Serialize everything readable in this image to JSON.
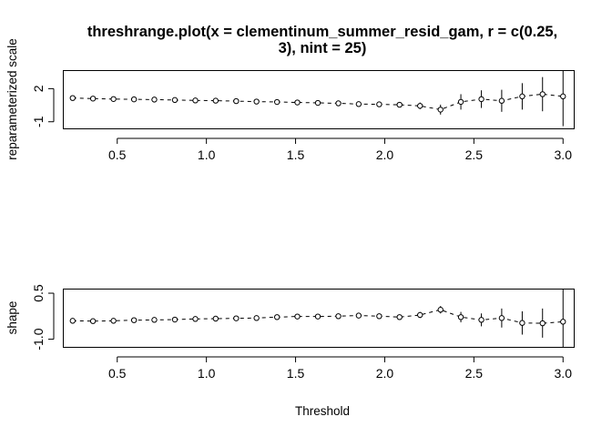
{
  "title_lines": [
    "threshrange.plot(x = clementinum_summer_resid_gam, r = c(0.25,",
    "3), nint = 25)"
  ],
  "chart_data": [
    {
      "type": "scatter",
      "panel": "top",
      "ylabel": "reparameterized scale",
      "xlabel": "",
      "xlim": [
        0.2,
        3.06
      ],
      "ylim": [
        -1.6,
        3.6
      ],
      "xticks": [
        0.5,
        1.0,
        1.5,
        2.0,
        2.5,
        3.0
      ],
      "xtick_labels": [
        "0.5",
        "1.0",
        "1.5",
        "2.0",
        "2.5",
        "3.0"
      ],
      "yticks": [
        -1,
        2
      ],
      "ytick_labels": [
        "-1",
        "2"
      ],
      "grid": false,
      "x": [
        0.25,
        0.364,
        0.479,
        0.594,
        0.708,
        0.823,
        0.938,
        1.052,
        1.167,
        1.281,
        1.396,
        1.51,
        1.625,
        1.74,
        1.854,
        1.969,
        2.083,
        2.198,
        2.313,
        2.427,
        2.542,
        2.656,
        2.771,
        2.885,
        3.0
      ],
      "estimate": [
        1.15,
        1.1,
        1.06,
        1.03,
        1.01,
        0.97,
        0.93,
        0.91,
        0.87,
        0.83,
        0.79,
        0.75,
        0.71,
        0.67,
        0.6,
        0.58,
        0.54,
        0.44,
        0.1,
        0.8,
        1.05,
        0.9,
        1.3,
        1.5,
        1.3
      ],
      "lower": [
        1.0,
        0.95,
        0.92,
        0.89,
        0.86,
        0.82,
        0.78,
        0.75,
        0.71,
        0.66,
        0.62,
        0.57,
        0.52,
        0.47,
        0.39,
        0.35,
        0.3,
        0.14,
        -0.35,
        0.1,
        0.25,
        -0.1,
        0.1,
        -0.05,
        -1.4
      ],
      "upper": [
        1.3,
        1.25,
        1.2,
        1.17,
        1.16,
        1.12,
        1.08,
        1.07,
        1.03,
        1.0,
        0.96,
        0.93,
        0.9,
        0.87,
        0.81,
        0.81,
        0.78,
        0.74,
        0.55,
        1.5,
        1.85,
        1.9,
        2.5,
        3.05,
        4.0
      ]
    },
    {
      "type": "scatter",
      "panel": "bottom",
      "ylabel": "shape",
      "xlabel": "Threshold",
      "xlim": [
        0.2,
        3.06
      ],
      "ylim": [
        -1.25,
        0.62
      ],
      "xticks": [
        0.5,
        1.0,
        1.5,
        2.0,
        2.5,
        3.0
      ],
      "xtick_labels": [
        "0.5",
        "1.0",
        "1.5",
        "2.0",
        "2.5",
        "3.0"
      ],
      "yticks": [
        -1.0,
        0.5
      ],
      "ytick_labels": [
        "-1.0",
        "0.5"
      ],
      "grid": false,
      "x": [
        0.25,
        0.364,
        0.479,
        0.594,
        0.708,
        0.823,
        0.938,
        1.052,
        1.167,
        1.281,
        1.396,
        1.51,
        1.625,
        1.74,
        1.854,
        1.969,
        2.083,
        2.198,
        2.313,
        2.427,
        2.542,
        2.656,
        2.771,
        2.885,
        3.0
      ],
      "estimate": [
        -0.4,
        -0.41,
        -0.4,
        -0.38,
        -0.37,
        -0.36,
        -0.34,
        -0.33,
        -0.32,
        -0.31,
        -0.28,
        -0.26,
        -0.26,
        -0.25,
        -0.23,
        -0.25,
        -0.28,
        -0.21,
        -0.04,
        -0.28,
        -0.37,
        -0.31,
        -0.47,
        -0.48,
        -0.43
      ],
      "lower": [
        -0.47,
        -0.48,
        -0.47,
        -0.45,
        -0.44,
        -0.43,
        -0.41,
        -0.4,
        -0.39,
        -0.38,
        -0.35,
        -0.33,
        -0.33,
        -0.32,
        -0.3,
        -0.32,
        -0.36,
        -0.31,
        -0.16,
        -0.45,
        -0.58,
        -0.62,
        -0.85,
        -0.95,
        -1.25
      ],
      "upper": [
        -0.33,
        -0.34,
        -0.33,
        -0.31,
        -0.3,
        -0.29,
        -0.27,
        -0.26,
        -0.25,
        -0.24,
        -0.21,
        -0.19,
        -0.19,
        -0.18,
        -0.16,
        -0.18,
        -0.2,
        -0.11,
        0.08,
        -0.11,
        -0.16,
        0.0,
        -0.09,
        0.0,
        0.62
      ]
    }
  ]
}
